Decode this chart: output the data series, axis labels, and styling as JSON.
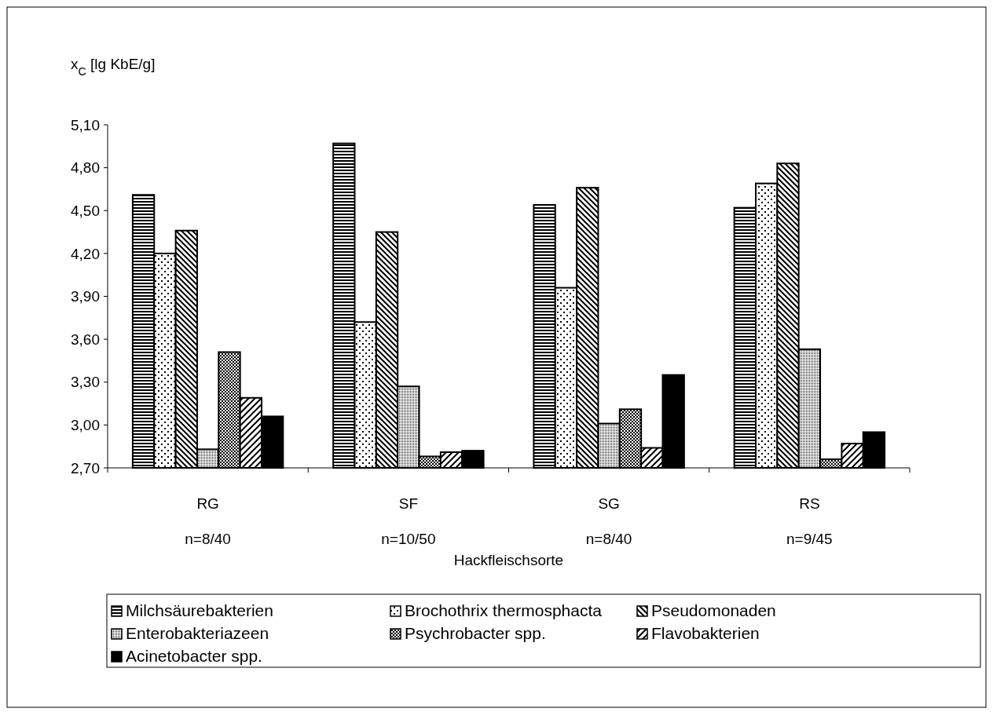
{
  "chart_data": {
    "type": "bar",
    "ylabel": "x$_{C}$ [lg KbE/g]",
    "xlabel": "Hackfleischsorte",
    "categories": [
      "RG",
      "SF",
      "SG",
      "RS"
    ],
    "series": [
      {
        "name": "Milchsäurebakterien",
        "color": "#000000",
        "values": [
          4.61,
          4.97,
          4.54,
          4.52
        ]
      },
      {
        "name": "Brochothrix thermosphacta",
        "color": "#000000",
        "values": [
          4.2,
          3.72,
          3.96,
          4.69
        ]
      },
      {
        "name": "Pseudomonaden",
        "color": "#000000",
        "values": [
          4.36,
          4.35,
          4.66,
          4.83
        ]
      },
      {
        "name": "Enterobakteriazeen",
        "color": "#000000",
        "values": [
          2.83,
          3.27,
          3.01,
          3.53
        ]
      },
      {
        "name": "Psychrobacter spp.",
        "color": "#000000",
        "values": [
          3.51,
          2.78,
          3.11,
          2.76
        ]
      },
      {
        "name": "Flavobakterien",
        "color": "#000000",
        "values": [
          3.19,
          2.81,
          2.84,
          2.87
        ]
      },
      {
        "name": "Acinetobacter spp.",
        "color": "#000000",
        "values": [
          3.06,
          2.82,
          3.35,
          2.95
        ]
      }
    ],
    "ylim": [
      2.7,
      5.1
    ],
    "yticks": [
      {
        "value": 2.7,
        "label": "2,70"
      },
      {
        "value": 3.0,
        "label": "3,00"
      },
      {
        "value": 3.3,
        "label": "3,30"
      },
      {
        "value": 3.6,
        "label": "3,60"
      },
      {
        "value": 3.9,
        "label": "3,90"
      },
      {
        "value": 4.2,
        "label": "4,20"
      },
      {
        "value": 4.5,
        "label": "4,50"
      },
      {
        "value": 4.8,
        "label": "4,80"
      },
      {
        "value": 5.1,
        "label": "5,10"
      }
    ],
    "annotations": [
      "n=8/40",
      "n=10/50",
      "n=8/40",
      "n=9/45"
    ],
    "legend": "bottom",
    "grid": false
  }
}
